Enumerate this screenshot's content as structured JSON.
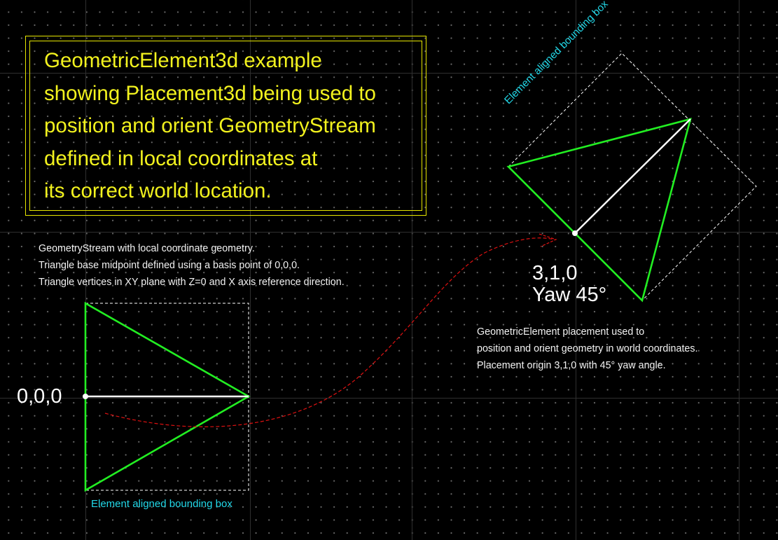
{
  "note": {
    "lines": [
      "GeometricElement3d example",
      "showing Placement3d being used to",
      "position and orient GeometryStream",
      "defined in local coordinates at",
      "its correct world location."
    ]
  },
  "local": {
    "caption_lines": [
      "GeometryStream with local coordinate geometry.",
      "Triangle base midpoint defined using a basis point of 0,0,0.",
      "Triangle vertices in XY plane with Z=0 and X axis reference direction."
    ],
    "origin_label": "0,0,0",
    "bbox_label": "Element aligned bounding box"
  },
  "world": {
    "position_label": "3,1,0",
    "yaw_label": "Yaw 45°",
    "caption_lines": [
      "GeometricElement placement used to",
      "position and orient geometry in world coordinates.",
      "Placement origin 3,1,0 with 45° yaw angle."
    ],
    "bbox_label": "Element aligned bounding box"
  },
  "colors": {
    "background": "#000000",
    "note_text": "#f2f21e",
    "note_border": "#e6e600",
    "triangle": "#22ee22",
    "axis_line": "#ffffff",
    "bbox_label": "#22d8e8",
    "arrow": "#dd1111"
  }
}
